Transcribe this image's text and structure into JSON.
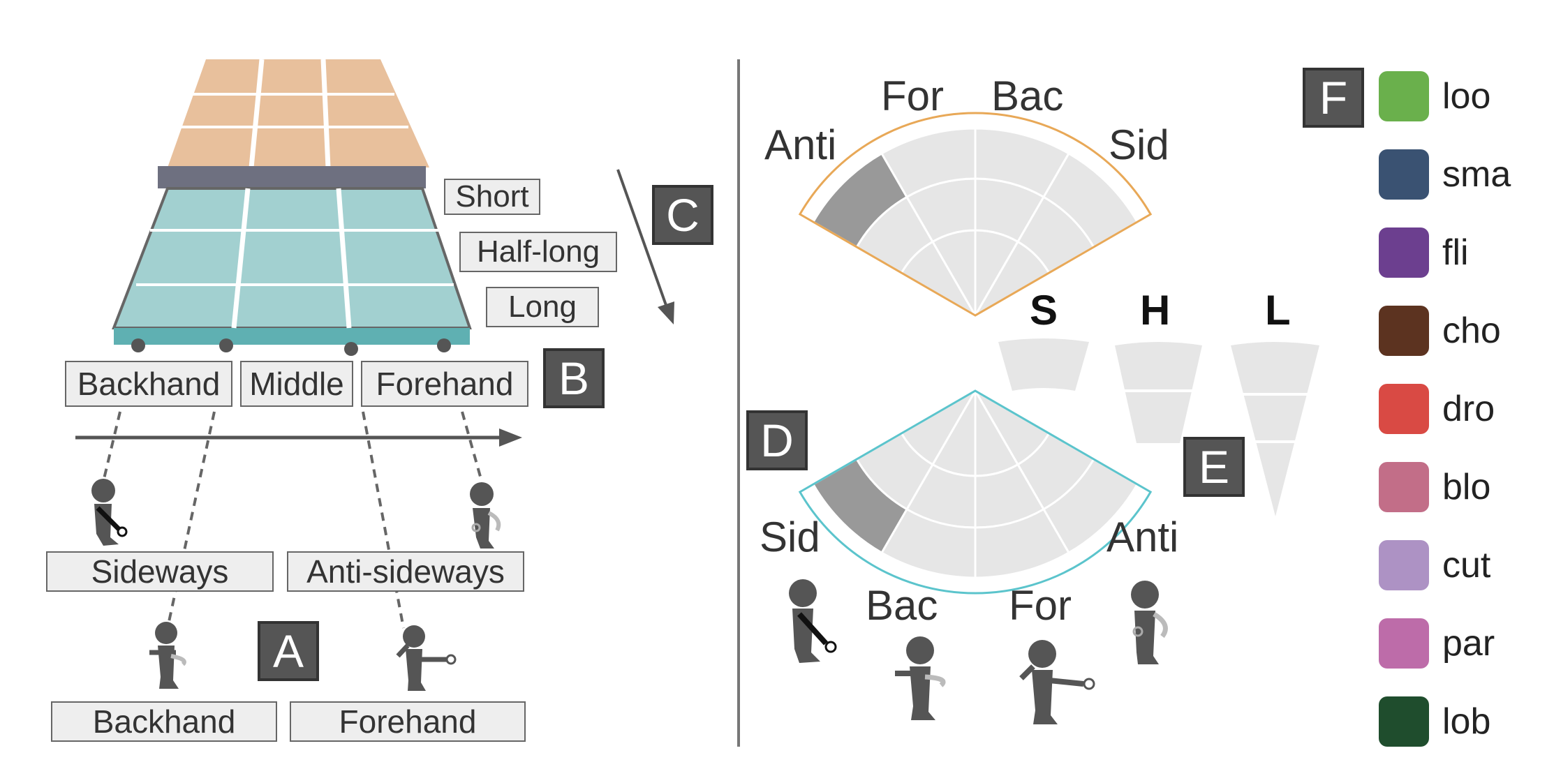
{
  "left": {
    "depth_labels": [
      "Short",
      "Half-long",
      "Long"
    ],
    "position_labels": [
      "Backhand",
      "Middle",
      "Forehand"
    ],
    "pose_labels": [
      "Sideways",
      "Anti-sideways",
      "Backhand",
      "Forehand"
    ],
    "tags": {
      "A": "A",
      "B": "B",
      "C": "C"
    }
  },
  "right": {
    "top_fan_labels": [
      "Anti",
      "For",
      "Bac",
      "Sid"
    ],
    "bottom_fan_labels": [
      "Sid",
      "Bac",
      "For",
      "Anti"
    ],
    "length_labels": [
      "S",
      "H",
      "L"
    ],
    "tags": {
      "D": "D",
      "E": "E",
      "F": "F"
    },
    "colors": {
      "top_fan_outline": "#e8a857",
      "bottom_fan_outline": "#5bc4cc",
      "highlight": "#999999",
      "sector": "#e6e6e6"
    }
  },
  "legend": [
    {
      "label": "loo",
      "color": "#6ab04c"
    },
    {
      "label": "sma",
      "color": "#3a5272"
    },
    {
      "label": "fli",
      "color": "#6c3f8f"
    },
    {
      "label": "cho",
      "color": "#5c3320"
    },
    {
      "label": "dro",
      "color": "#d94a44"
    },
    {
      "label": "blo",
      "color": "#c26e88"
    },
    {
      "label": "cut",
      "color": "#ad92c4"
    },
    {
      "label": "par",
      "color": "#bd6ca9"
    },
    {
      "label": "lob",
      "color": "#1f4d2d"
    }
  ]
}
